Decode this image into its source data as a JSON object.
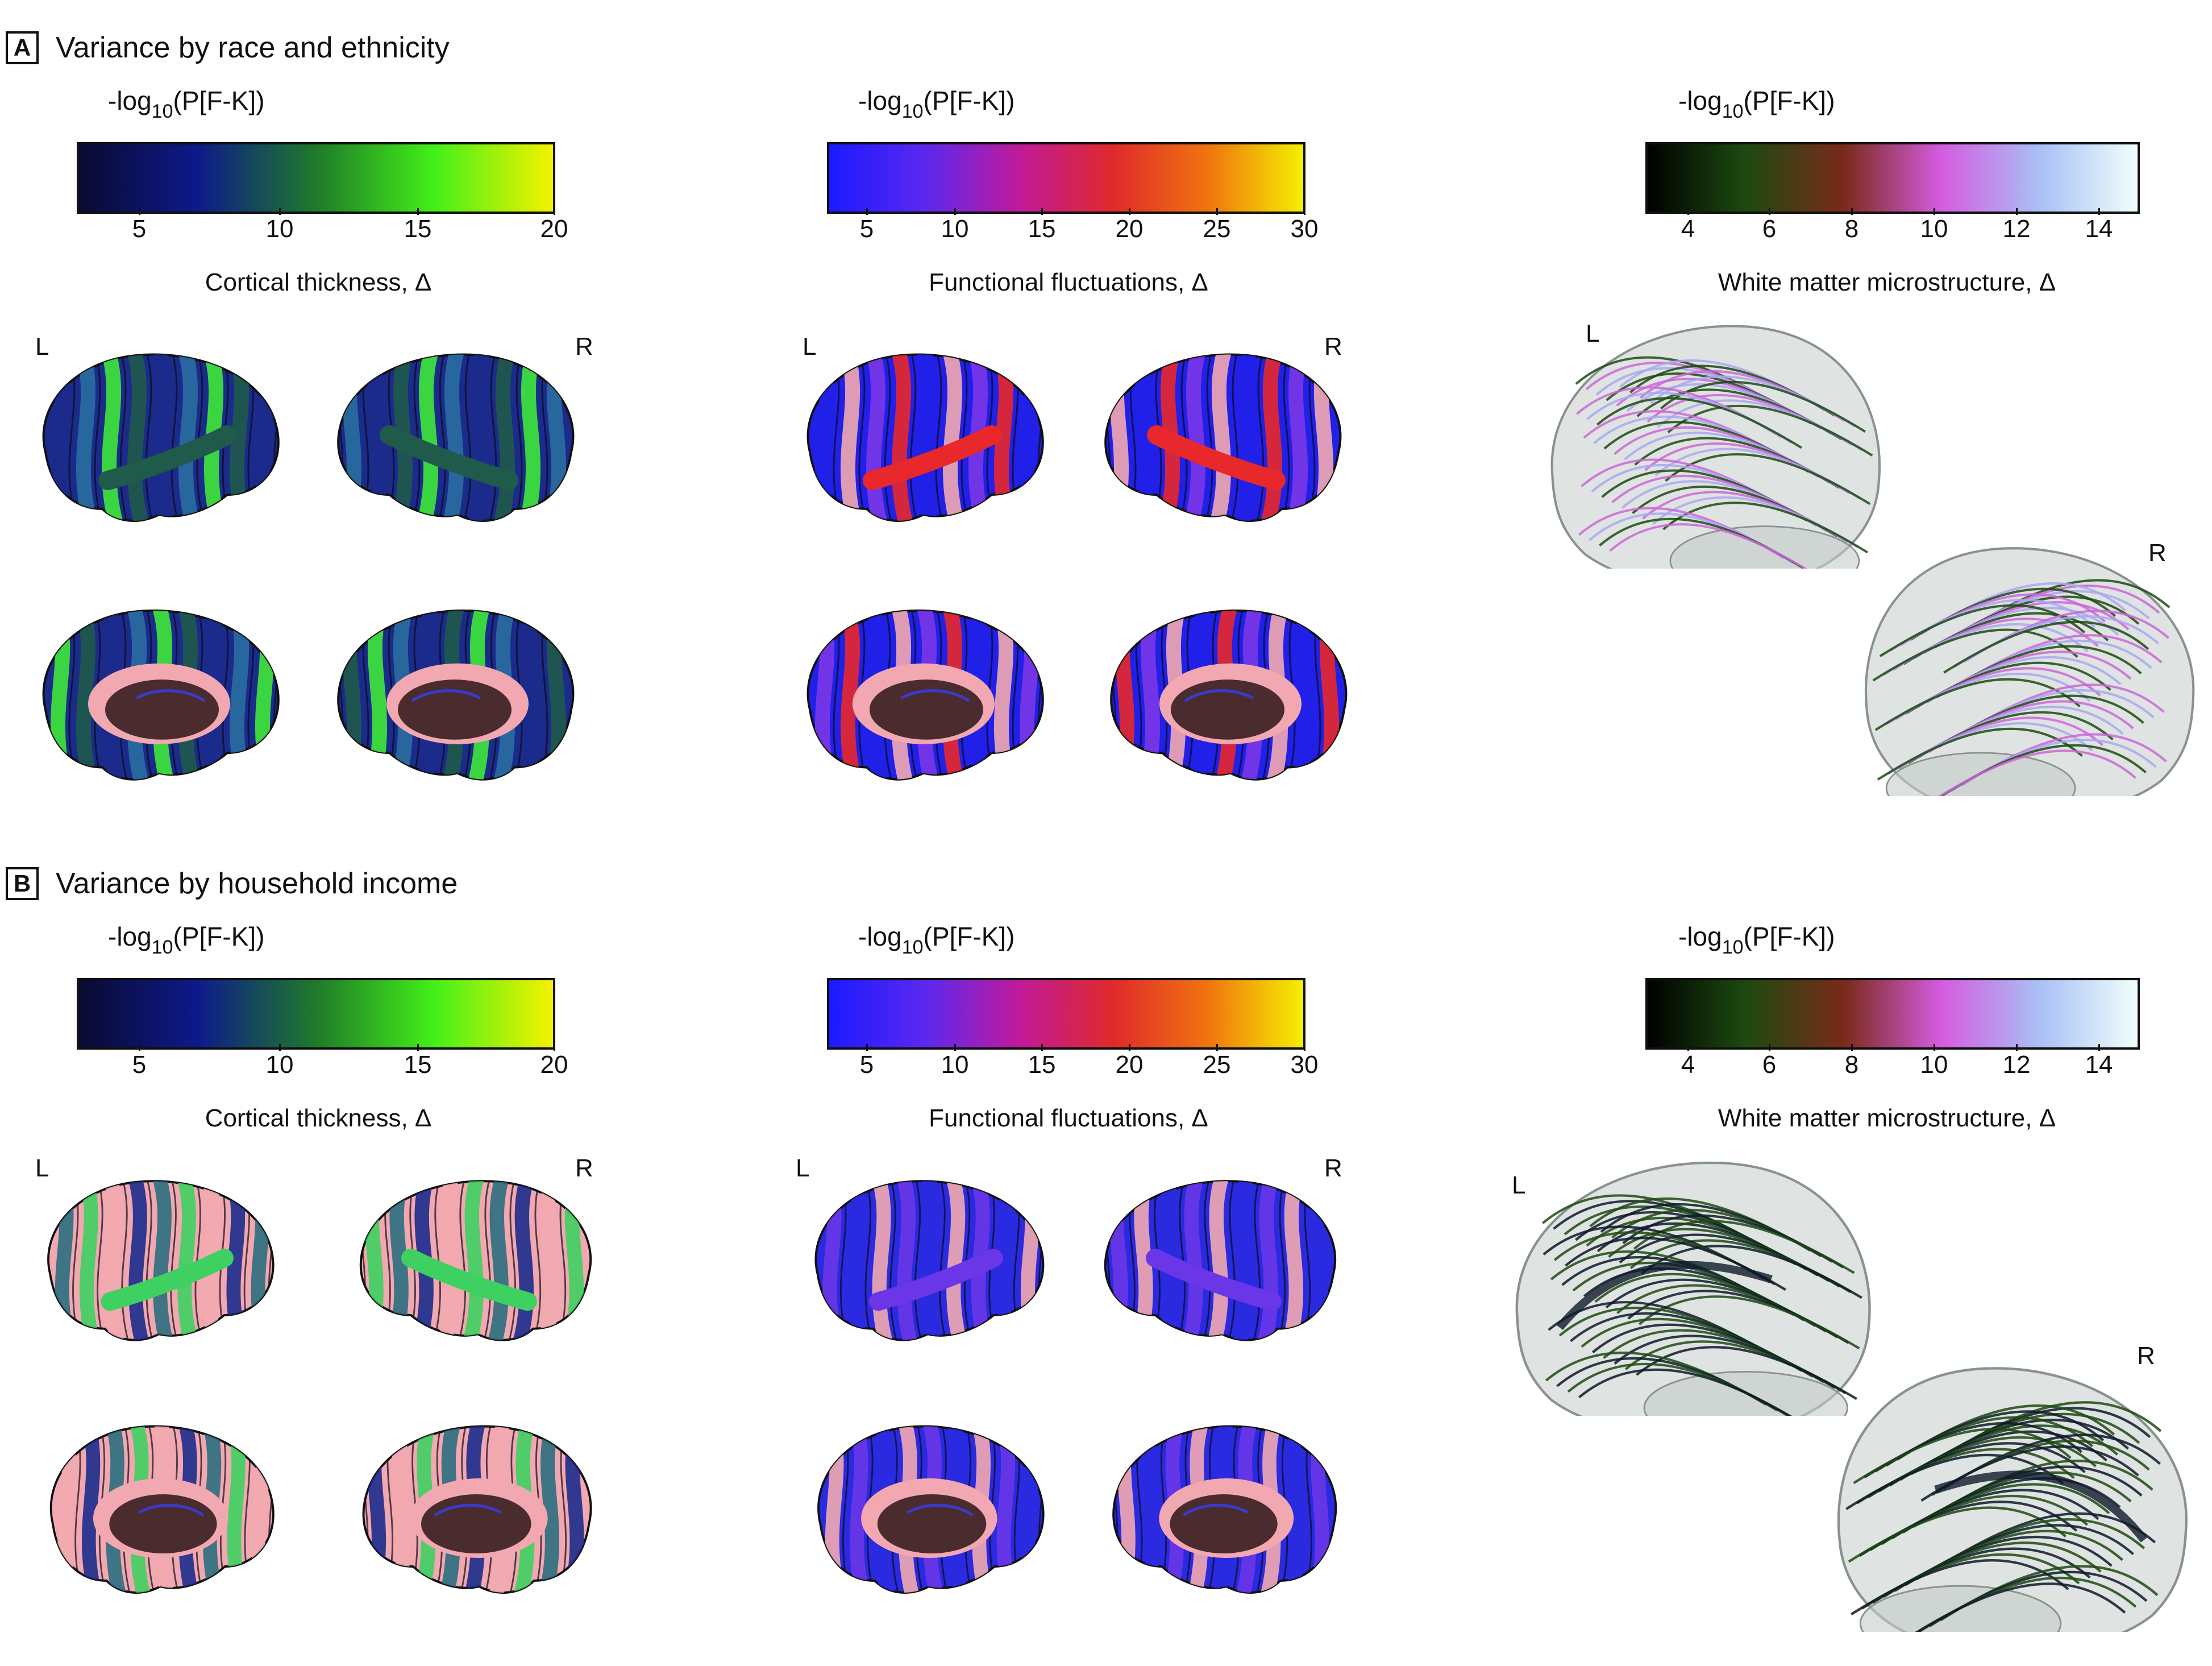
{
  "panels": [
    {
      "letter": "A",
      "title": "Variance by race and ethnicity",
      "scales": [
        {
          "label_prefix": "-log",
          "label_sub": "10",
          "label_suffix": "(P[F-K])",
          "ticks": [
            "5",
            "10",
            "15",
            "20"
          ],
          "title": "Cortical thickness, Δ",
          "colors": [
            "#0a0a30",
            "#0d1a8a",
            "#1f7a2a",
            "#43f018",
            "#f5f200"
          ]
        },
        {
          "label_prefix": "-log",
          "label_sub": "10",
          "label_suffix": "(P[F-K])",
          "ticks": [
            "5",
            "10",
            "15",
            "20",
            "25",
            "30"
          ],
          "title": "Functional fluctuations, Δ",
          "colors": [
            "#1a1aff",
            "#5a28f0",
            "#c01a9a",
            "#e02a2a",
            "#f07510",
            "#f4f000"
          ]
        },
        {
          "label_prefix": "-log",
          "label_sub": "10",
          "label_suffix": "(P[F-K])",
          "ticks": [
            "4",
            "6",
            "8",
            "10",
            "12",
            "14"
          ],
          "title": "White matter microstructure, Δ",
          "colors": [
            "#000000",
            "#1c4a10",
            "#7a2a1a",
            "#d55ce0",
            "#a8c0f5",
            "#f0fffb"
          ]
        }
      ],
      "hemispheres": {
        "left": "L",
        "right": "R"
      }
    },
    {
      "letter": "B",
      "title": "Variance by household income",
      "scales": [
        {
          "label_prefix": "-log",
          "label_sub": "10",
          "label_suffix": "(P[F-K])",
          "ticks": [
            "5",
            "10",
            "15",
            "20"
          ],
          "title": "Cortical thickness, Δ",
          "colors": [
            "#0a0a30",
            "#0d1a8a",
            "#1f7a2a",
            "#43f018",
            "#f5f200"
          ]
        },
        {
          "label_prefix": "-log",
          "label_sub": "10",
          "label_suffix": "(P[F-K])",
          "ticks": [
            "5",
            "10",
            "15",
            "20",
            "25",
            "30"
          ],
          "title": "Functional fluctuations, Δ",
          "colors": [
            "#1a1aff",
            "#5a28f0",
            "#c01a9a",
            "#e02a2a",
            "#f07510",
            "#f4f000"
          ]
        },
        {
          "label_prefix": "-log",
          "label_sub": "10",
          "label_suffix": "(P[F-K])",
          "ticks": [
            "4",
            "6",
            "8",
            "10",
            "12",
            "14"
          ],
          "title": "White matter microstructure, Δ",
          "colors": [
            "#000000",
            "#1c4a10",
            "#7a2a1a",
            "#d55ce0",
            "#a8c0f5",
            "#f0fffb"
          ]
        }
      ],
      "hemispheres": {
        "left": "L",
        "right": "R"
      }
    }
  ],
  "brain_colors": {
    "thickness_a": [
      "#1b2b8c",
      "#2a6ea0",
      "#40e83a",
      "#1f5a4a"
    ],
    "thickness_b": [
      "#f2a8b0",
      "#1b2b8c",
      "#2a6e80",
      "#3ed060"
    ],
    "functional_a": [
      "#2020e8",
      "#f2a8b0",
      "#7a36e6",
      "#e8282a"
    ],
    "functional_b": [
      "#2a2ae0",
      "#f2a8b0",
      "#6a36e8"
    ],
    "white_matter_a": [
      "#1c4a12",
      "#cc66d8",
      "#a8a8f0"
    ],
    "white_matter_b": [
      "#1f4a14",
      "#0e1a2a"
    ],
    "medial": "#4a2c2e",
    "glass": "#c4ccc8"
  }
}
